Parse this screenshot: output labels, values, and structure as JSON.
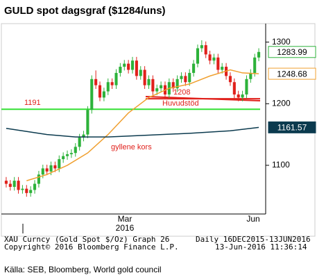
{
  "chart_data": {
    "type": "candlestick",
    "title": "GULD spot dagsgraf ($1284/uns)",
    "open": [
      1075,
      1070,
      1065,
      1075,
      1060,
      1062,
      1055,
      1060,
      1070,
      1085,
      1095,
      1090,
      1100,
      1095,
      1110,
      1115,
      1118,
      1120,
      1130,
      1145,
      1150,
      1190,
      1240,
      1230,
      1210,
      1220,
      1235,
      1230,
      1250,
      1260,
      1265,
      1255,
      1270,
      1245,
      1255,
      1230,
      1240,
      1220,
      1225,
      1230,
      1215,
      1235,
      1225,
      1240,
      1245,
      1235,
      1250,
      1265,
      1290,
      1295,
      1280,
      1270,
      1275,
      1255,
      1260,
      1245,
      1235,
      1215,
      1210,
      1215,
      1240,
      1250,
      1275
    ],
    "high": [
      1081,
      1076,
      1081,
      1081,
      1068,
      1068,
      1066,
      1076,
      1091,
      1101,
      1101,
      1106,
      1106,
      1116,
      1121,
      1124,
      1126,
      1136,
      1151,
      1156,
      1196,
      1246,
      1254,
      1236,
      1226,
      1241,
      1241,
      1256,
      1266,
      1271,
      1271,
      1276,
      1276,
      1261,
      1261,
      1246,
      1246,
      1231,
      1236,
      1236,
      1241,
      1241,
      1246,
      1251,
      1251,
      1256,
      1271,
      1296,
      1303,
      1301,
      1286,
      1281,
      1281,
      1266,
      1266,
      1251,
      1241,
      1221,
      1221,
      1246,
      1256,
      1281,
      1290
    ],
    "low": [
      1064,
      1059,
      1059,
      1054,
      1054,
      1049,
      1049,
      1054,
      1064,
      1079,
      1084,
      1084,
      1089,
      1089,
      1104,
      1109,
      1112,
      1114,
      1124,
      1139,
      1144,
      1184,
      1224,
      1204,
      1204,
      1214,
      1224,
      1224,
      1244,
      1254,
      1249,
      1249,
      1239,
      1239,
      1224,
      1224,
      1214,
      1214,
      1219,
      1209,
      1209,
      1219,
      1219,
      1234,
      1229,
      1229,
      1244,
      1259,
      1284,
      1274,
      1264,
      1264,
      1249,
      1249,
      1239,
      1229,
      1209,
      1204,
      1204,
      1209,
      1234,
      1244,
      1269
    ],
    "close": [
      1070,
      1065,
      1075,
      1060,
      1062,
      1055,
      1060,
      1070,
      1085,
      1095,
      1090,
      1100,
      1095,
      1110,
      1115,
      1118,
      1120,
      1130,
      1145,
      1150,
      1190,
      1240,
      1230,
      1210,
      1220,
      1235,
      1230,
      1250,
      1260,
      1265,
      1255,
      1270,
      1245,
      1255,
      1230,
      1240,
      1220,
      1225,
      1230,
      1215,
      1235,
      1225,
      1240,
      1245,
      1235,
      1250,
      1265,
      1290,
      1295,
      1280,
      1270,
      1275,
      1255,
      1260,
      1245,
      1235,
      1215,
      1210,
      1215,
      1240,
      1250,
      1275,
      1283.99
    ],
    "up_color": "#2db23a",
    "down_color": "#e0201b",
    "last_color": "#2db23a",
    "series": [
      {
        "color": "#f0a030",
        "x": [
          5,
          10,
          15,
          20,
          25,
          30,
          35,
          40,
          45,
          50,
          55,
          58,
          62
        ],
        "values": [
          1075,
          1085,
          1100,
          1120,
          1150,
          1185,
          1210,
          1225,
          1232,
          1245,
          1255,
          1250,
          1248.68
        ]
      },
      {
        "color": "#0b3a4e",
        "x": [
          0,
          10,
          17,
          25,
          35,
          45,
          55,
          62
        ],
        "values": [
          1160,
          1150,
          1146,
          1146,
          1149,
          1152,
          1156,
          1161.57
        ]
      }
    ],
    "levels": [
      {
        "value": 1191,
        "label": "1191",
        "color": "#33e033"
      },
      {
        "value": 1208,
        "label": "1208",
        "color": "#e0201b"
      }
    ],
    "annotations": [
      "Huvudstöd",
      "gyllene kors"
    ],
    "ylim": [
      1030,
      1330
    ],
    "yticks": [
      1100,
      1200,
      1300
    ],
    "x_labels": [
      "Mar",
      "2016",
      "Jun"
    ],
    "footer": [
      "XAU Curncy (Gold Spot  $/Oz) Graph 26",
      "Daily 16DEC2015-13JUN2016",
      "Copyright© 2016 Bloomberg Finance L.P.",
      "13-Jun-2016 11:36:14"
    ],
    "source": "Källa: SEB, Bloomberg, World gold council"
  }
}
